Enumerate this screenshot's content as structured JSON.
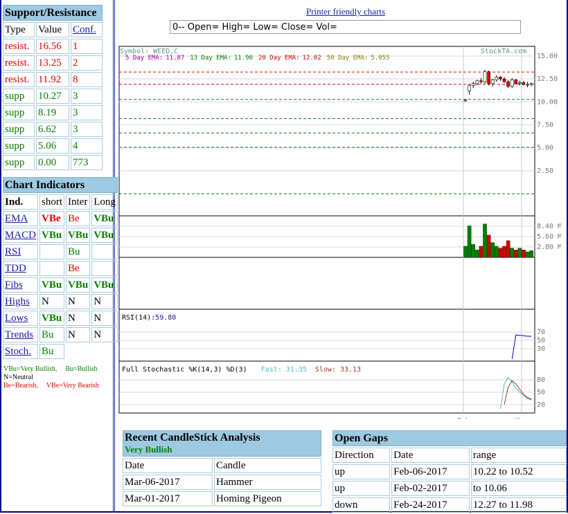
{
  "header": {
    "printer_link": "Printer friendly charts",
    "ohlc_readout": "0-- Open= High= Low= Close= Vol="
  },
  "support_resistance": {
    "title": "Support/Resistance",
    "columns": [
      "Type",
      "Value",
      "Conf."
    ],
    "rows": [
      {
        "type": "resist.",
        "value": "16.56",
        "conf": "1",
        "color": "#e00000"
      },
      {
        "type": "resist.",
        "value": "13.25",
        "conf": "2",
        "color": "#e00000"
      },
      {
        "type": "resist.",
        "value": "11.92",
        "conf": "8",
        "color": "#e00000"
      },
      {
        "type": "supp",
        "value": "10.27",
        "conf": "3",
        "color": "#008000"
      },
      {
        "type": "supp",
        "value": "8.19",
        "conf": "3",
        "color": "#008000"
      },
      {
        "type": "supp",
        "value": "6.62",
        "conf": "3",
        "color": "#008000"
      },
      {
        "type": "supp",
        "value": "5.06",
        "conf": "4",
        "color": "#008000"
      },
      {
        "type": "supp",
        "value": "0.00",
        "conf": "773",
        "color": "#008000"
      }
    ]
  },
  "chart_indicators": {
    "title": "Chart Indicators",
    "columns": [
      "Ind.",
      "short",
      "Inter",
      "Long"
    ],
    "rows": [
      [
        "EMA",
        "VBe",
        "Be",
        "VBu"
      ],
      [
        "MACD",
        "VBu",
        "VBu",
        "VBu"
      ],
      [
        "RSI",
        null,
        "Bu",
        null
      ],
      [
        "TDD",
        null,
        "Be",
        null
      ],
      [
        "Fibs",
        "VBu",
        "VBu",
        "VBu"
      ],
      [
        "Highs",
        "N",
        "N",
        "N"
      ],
      [
        "Lows",
        "VBu",
        "N",
        "N"
      ],
      [
        "Trends",
        "Bu",
        "N",
        "N"
      ],
      [
        "Stoch.",
        "Bu"
      ]
    ],
    "signal_styles": {
      "VBu": {
        "color": "#008000",
        "bold": true
      },
      "Bu": {
        "color": "#008000",
        "bold": false
      },
      "Be": {
        "color": "#e00000",
        "bold": false
      },
      "VBe": {
        "color": "#e00000",
        "bold": true
      },
      "N": {
        "color": "#000000",
        "bold": false
      }
    },
    "key": [
      {
        "text": "VBu=Very Bullish,",
        "color": "#008000"
      },
      {
        "text": "Bu=Bullish",
        "color": "#008000"
      },
      {
        "text": "N=Neutral",
        "color": "#000000"
      },
      {
        "text": "Be=Bearish,",
        "color": "#e00000"
      },
      {
        "text": "VBe=Very Bearish",
        "color": "#e00000"
      }
    ]
  },
  "chart": {
    "type": "candlestick",
    "symbol_label": "Symbol: WEED.C",
    "watermark": "StockTA.com",
    "emas": [
      {
        "label": "5 Day EMA:",
        "value": 11.87,
        "color": "#a000a0"
      },
      {
        "label": "13 Day EMA:",
        "value": 11.96,
        "color": "#008000"
      },
      {
        "label": "20 Day EMA:",
        "value": 12.02,
        "color": "#d00000"
      },
      {
        "label": "50 Day EMA:",
        "value": 5.055,
        "color": "#808000"
      }
    ],
    "x_labels": [
      "Feb",
      "Mar"
    ],
    "price": {
      "ylim": [
        -2.4,
        16.05
      ],
      "yticks": [
        {
          "value": 15,
          "label": "15.00"
        },
        {
          "value": 12.5,
          "label": "12.50"
        },
        {
          "value": 10,
          "label": "10.00"
        },
        {
          "value": 7.5,
          "label": "7.50"
        },
        {
          "value": 5,
          "label": "5.00"
        },
        {
          "value": 2.5,
          "label": "2.50"
        }
      ],
      "open": [
        10.1,
        11.2,
        11.8,
        12.0,
        12.3,
        12.2,
        13.3,
        12.0,
        12.4,
        12.7,
        12.5,
        12.2,
        11.7,
        12.4,
        12.0,
        12.1,
        11.9,
        11.9
      ],
      "high": [
        10.3,
        11.9,
        12.2,
        12.4,
        12.6,
        13.5,
        13.4,
        12.5,
        12.9,
        12.8,
        12.7,
        12.4,
        12.6,
        12.5,
        12.3,
        12.3,
        12.2,
        12.1
      ],
      "low": [
        10.0,
        10.8,
        11.5,
        11.8,
        12.0,
        12.0,
        11.8,
        11.7,
        12.2,
        12.3,
        12.1,
        11.5,
        11.5,
        11.9,
        11.8,
        11.8,
        11.6,
        11.7
      ],
      "close": [
        10.2,
        11.8,
        12.0,
        12.3,
        12.2,
        13.3,
        12.0,
        12.4,
        12.7,
        12.5,
        12.2,
        11.7,
        12.4,
        12.0,
        12.1,
        11.9,
        11.9,
        12.0
      ]
    },
    "volume": {
      "ylim": [
        0,
        11.2
      ],
      "yticks": [
        {
          "value": 8.4,
          "label": "8.40 M"
        },
        {
          "value": 5.6,
          "label": "5.60 M"
        },
        {
          "value": 2.8,
          "label": "2.80 M"
        }
      ],
      "values": [
        3,
        8.5,
        3.5,
        2,
        3,
        9,
        6,
        4,
        3,
        2.5,
        3,
        4.5,
        2.5,
        2,
        2.5,
        2,
        1.5,
        1.8
      ]
    },
    "rsi": {
      "label": "RSI(14):",
      "value_label": "59.80",
      "color": "#0000cc",
      "ylim": [
        0,
        125
      ],
      "yticks": [
        70,
        50,
        30
      ],
      "values": [
        null,
        null,
        null,
        null,
        null,
        null,
        null,
        null,
        null,
        null,
        null,
        null,
        5,
        63,
        62,
        61,
        60,
        59.8
      ]
    },
    "stochastic": {
      "label": "Full Stochastic %K(14,3) %D(3)",
      "fast_label": "Fast:",
      "fast_value": 31.35,
      "fast_color": "#4cb8c4",
      "slow_label": "Slow:",
      "slow_value": 33.13,
      "slow_color": "#b03030",
      "ylim": [
        0,
        125
      ],
      "yticks": [
        80,
        50,
        20
      ],
      "fast": [
        null,
        null,
        null,
        null,
        null,
        null,
        null,
        null,
        null,
        10,
        70,
        86,
        75,
        60,
        50,
        42,
        35,
        31.35
      ],
      "slow": [
        null,
        null,
        null,
        null,
        null,
        null,
        null,
        null,
        null,
        null,
        20,
        62,
        78,
        70,
        57,
        45,
        37,
        33.13
      ]
    }
  },
  "candlestick_analysis": {
    "title": "Recent CandleStick Analysis",
    "signal": "Very Bullish",
    "columns": [
      "Date",
      "Candle"
    ],
    "rows": [
      [
        "Mar-06-2017",
        "Hammer"
      ],
      [
        "Mar-01-2017",
        "Homing Pigeon"
      ]
    ]
  },
  "open_gaps": {
    "title": "Open Gaps",
    "columns": [
      "Direction",
      "Date",
      "range"
    ],
    "rows": [
      [
        "up",
        "Feb-06-2017",
        "10.22 to 10.52"
      ],
      [
        "up",
        "Feb-02-2017",
        "to 10.06"
      ],
      [
        "down",
        "Feb-24-2017",
        "12.27 to 11.98"
      ]
    ]
  }
}
